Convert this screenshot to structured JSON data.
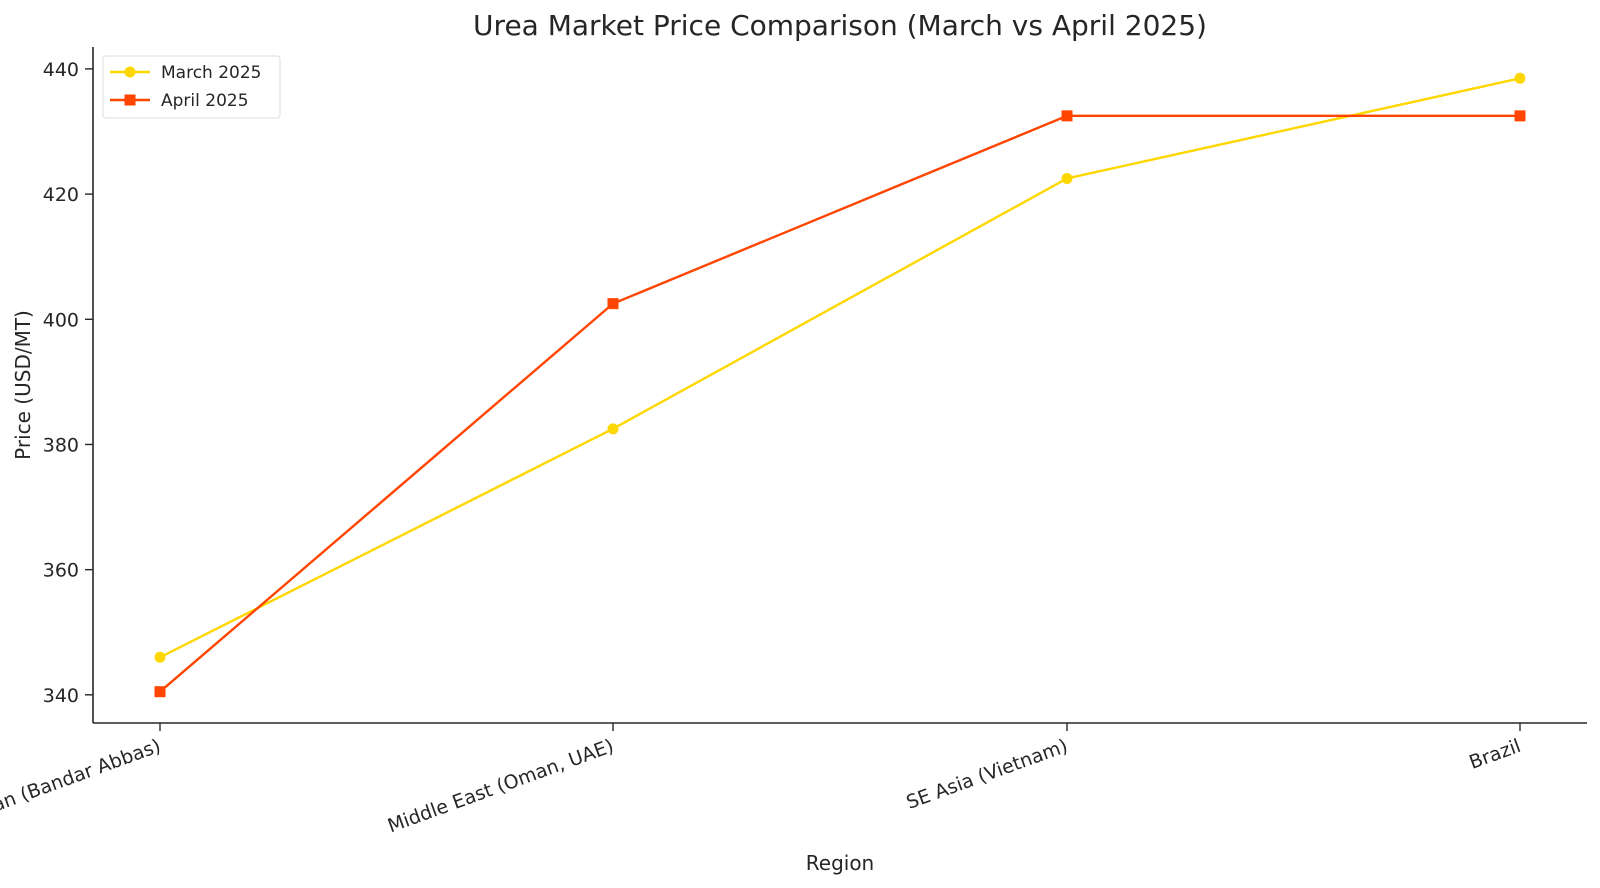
{
  "chart_data": {
    "type": "line",
    "title": "Urea Market Price Comparison (March vs April 2025)",
    "xlabel": "Region",
    "ylabel": "Price (USD/MT)",
    "categories": [
      "Iran (Bandar Abbas)",
      "Middle East (Oman, UAE)",
      "SE Asia (Vietnam)",
      "Brazil"
    ],
    "ylim": [
      335.5,
      443.5
    ],
    "yticks": [
      340,
      360,
      380,
      400,
      420,
      440
    ],
    "ytick_labels": [
      "340",
      "360",
      "380",
      "400",
      "420",
      "440"
    ],
    "grid": false,
    "legend_position": "top-left",
    "series": [
      {
        "name": "March 2025",
        "marker": "circle",
        "color": "#FFD700",
        "values": [
          346,
          382.5,
          422.5,
          438.5
        ]
      },
      {
        "name": "April 2025",
        "marker": "square",
        "color": "#FF4500",
        "values": [
          340.5,
          402.5,
          432.5,
          432.5
        ]
      }
    ]
  }
}
